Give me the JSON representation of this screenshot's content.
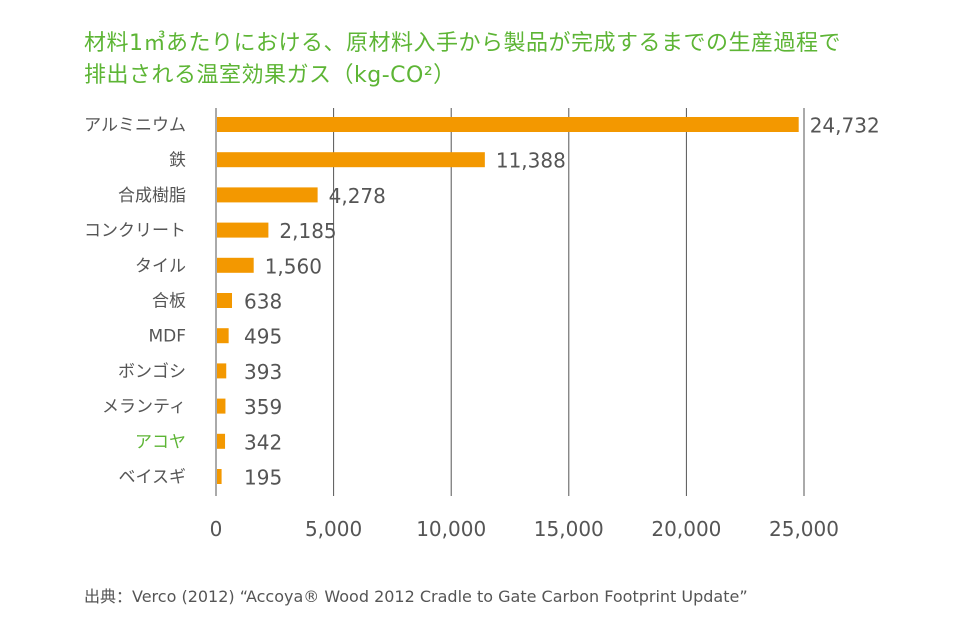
{
  "chart_data": {
    "type": "bar",
    "orientation": "horizontal",
    "title_line1": "材料1㎥あたりにおける、原材料入手から製品が完成するまでの生産過程で",
    "title_line2": "排出される温室効果ガス（kg-CO²）",
    "categories": [
      "アルミニウム",
      "鉄",
      "合成樹脂",
      "コンクリート",
      "タイル",
      "合板",
      "MDF",
      "ボンゴシ",
      "メランティ",
      "アコヤ",
      "ベイスギ"
    ],
    "values": [
      24732,
      11388,
      4278,
      2185,
      1560,
      638,
      495,
      393,
      359,
      342,
      195
    ],
    "value_labels": [
      "24,732",
      "11,388",
      "4,278",
      "2,185",
      "1,560",
      "638",
      "495",
      "393",
      "359",
      "342",
      "195"
    ],
    "highlight_category": "アコヤ",
    "xlim": [
      0,
      25000
    ],
    "xticks": [
      0,
      5000,
      10000,
      15000,
      20000,
      25000
    ],
    "xtick_labels": [
      "0",
      "5,000",
      "10,000",
      "15,000",
      "20,000",
      "25,000"
    ],
    "grid": true,
    "colors": {
      "bar": "#f39800",
      "title": "#5db535",
      "highlight_label": "#5db535",
      "text": "#555555",
      "grid": "#555555"
    }
  },
  "source": "出典：Verco (2012) “Accoya® Wood 2012 Cradle to Gate Carbon Footprint Update”"
}
